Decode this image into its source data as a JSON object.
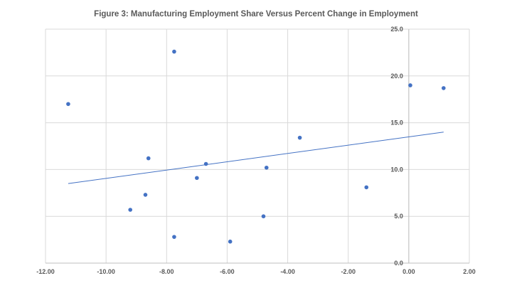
{
  "chart_data": {
    "type": "scatter",
    "title": "Figure 3: Manufacturing Employment Share Versus Percent Change in Employment",
    "xlabel": "",
    "ylabel": "",
    "xlim": [
      -12,
      2
    ],
    "ylim": [
      0,
      25
    ],
    "x_ticks": [
      "-12.00",
      "-10.00",
      "-8.00",
      "-6.00",
      "-4.00",
      "-2.00",
      "0.00",
      "2.00"
    ],
    "y_ticks": [
      "0.0",
      "5.0",
      "10.0",
      "15.0",
      "20.0",
      "25.0"
    ],
    "grid": true,
    "series": [
      {
        "name": "Manufacturing Employment Share",
        "color": "#4472C4",
        "points": [
          {
            "x": -11.25,
            "y": 17.0
          },
          {
            "x": -7.75,
            "y": 22.6
          },
          {
            "x": -8.6,
            "y": 11.2
          },
          {
            "x": -6.7,
            "y": 10.6
          },
          {
            "x": -7.0,
            "y": 9.1
          },
          {
            "x": -8.7,
            "y": 7.3
          },
          {
            "x": -9.2,
            "y": 5.7
          },
          {
            "x": -7.75,
            "y": 2.8
          },
          {
            "x": -5.9,
            "y": 2.3
          },
          {
            "x": -4.8,
            "y": 5.0
          },
          {
            "x": -4.7,
            "y": 10.2
          },
          {
            "x": -3.6,
            "y": 13.4
          },
          {
            "x": -1.4,
            "y": 8.1
          },
          {
            "x": 0.05,
            "y": 19.0
          },
          {
            "x": 1.15,
            "y": 18.7
          }
        ]
      }
    ],
    "trendline": {
      "type": "linear",
      "color": "#4472C4",
      "points": [
        {
          "x": -11.25,
          "y": 8.5
        },
        {
          "x": 1.15,
          "y": 14.0
        }
      ]
    }
  }
}
